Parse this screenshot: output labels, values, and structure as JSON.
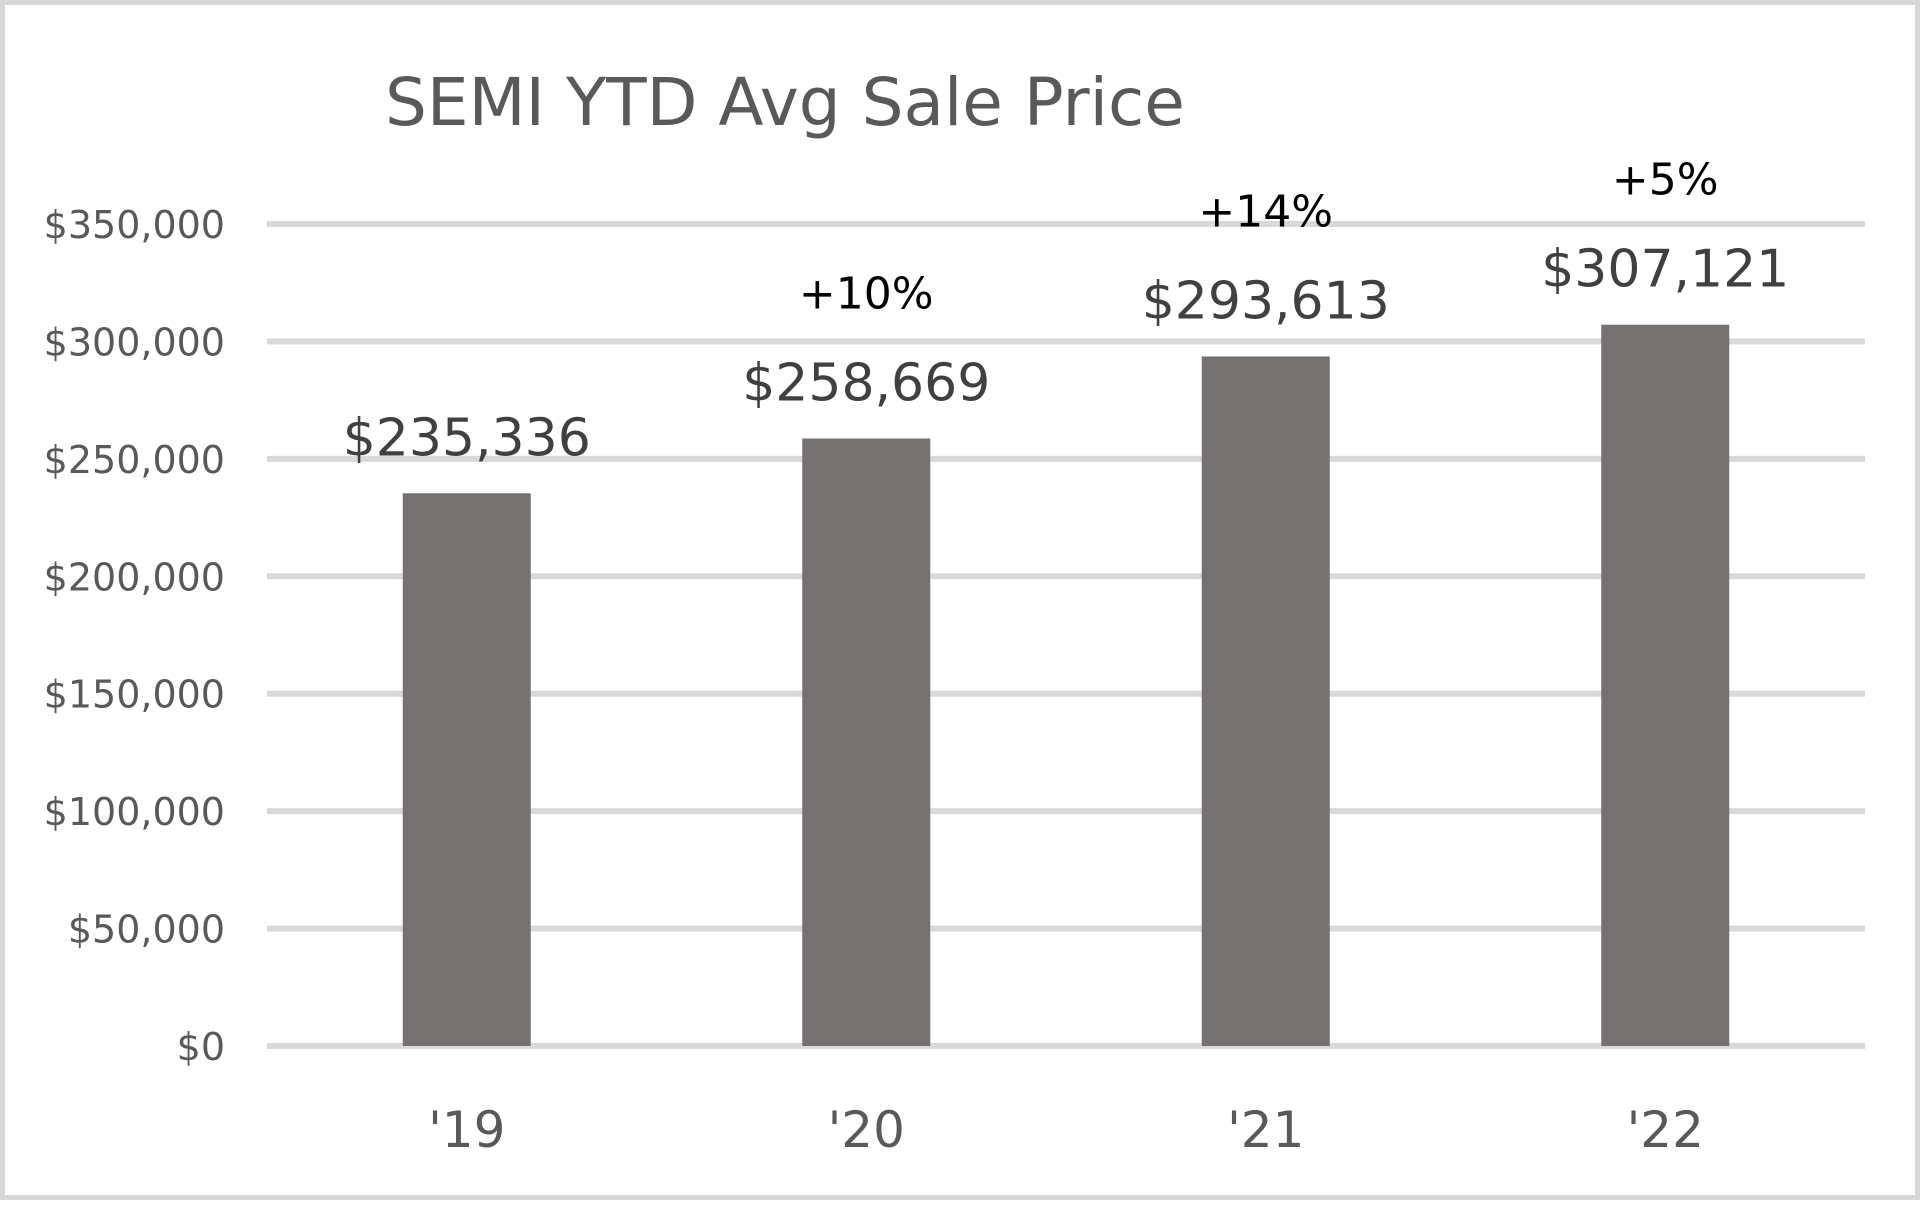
{
  "chart_data": {
    "type": "bar",
    "title": "SEMI YTD Avg Sale Price",
    "categories": [
      "'19",
      "'20",
      "'21",
      "'22"
    ],
    "values": [
      235336,
      258669,
      293613,
      307121
    ],
    "data_labels": [
      "$235,336",
      "$258,669",
      "$293,613",
      "$307,121"
    ],
    "change_labels": [
      "",
      "+10%",
      "+14%",
      "+5%"
    ],
    "xlabel": "",
    "ylabel": "",
    "ylim": [
      0,
      350000
    ],
    "yticks": [
      0,
      50000,
      100000,
      150000,
      200000,
      250000,
      300000,
      350000
    ],
    "ytick_labels": [
      "$0",
      "$50,000",
      "$100,000",
      "$150,000",
      "$200,000",
      "$250,000",
      "$300,000",
      "$350,000"
    ],
    "grid": true,
    "legend": "none",
    "colors": {
      "bar": "#767171",
      "gridline": "#d9d9d9",
      "axis_text": "#595959",
      "change_text": "#000000",
      "frame": "#d6d6d6"
    }
  }
}
